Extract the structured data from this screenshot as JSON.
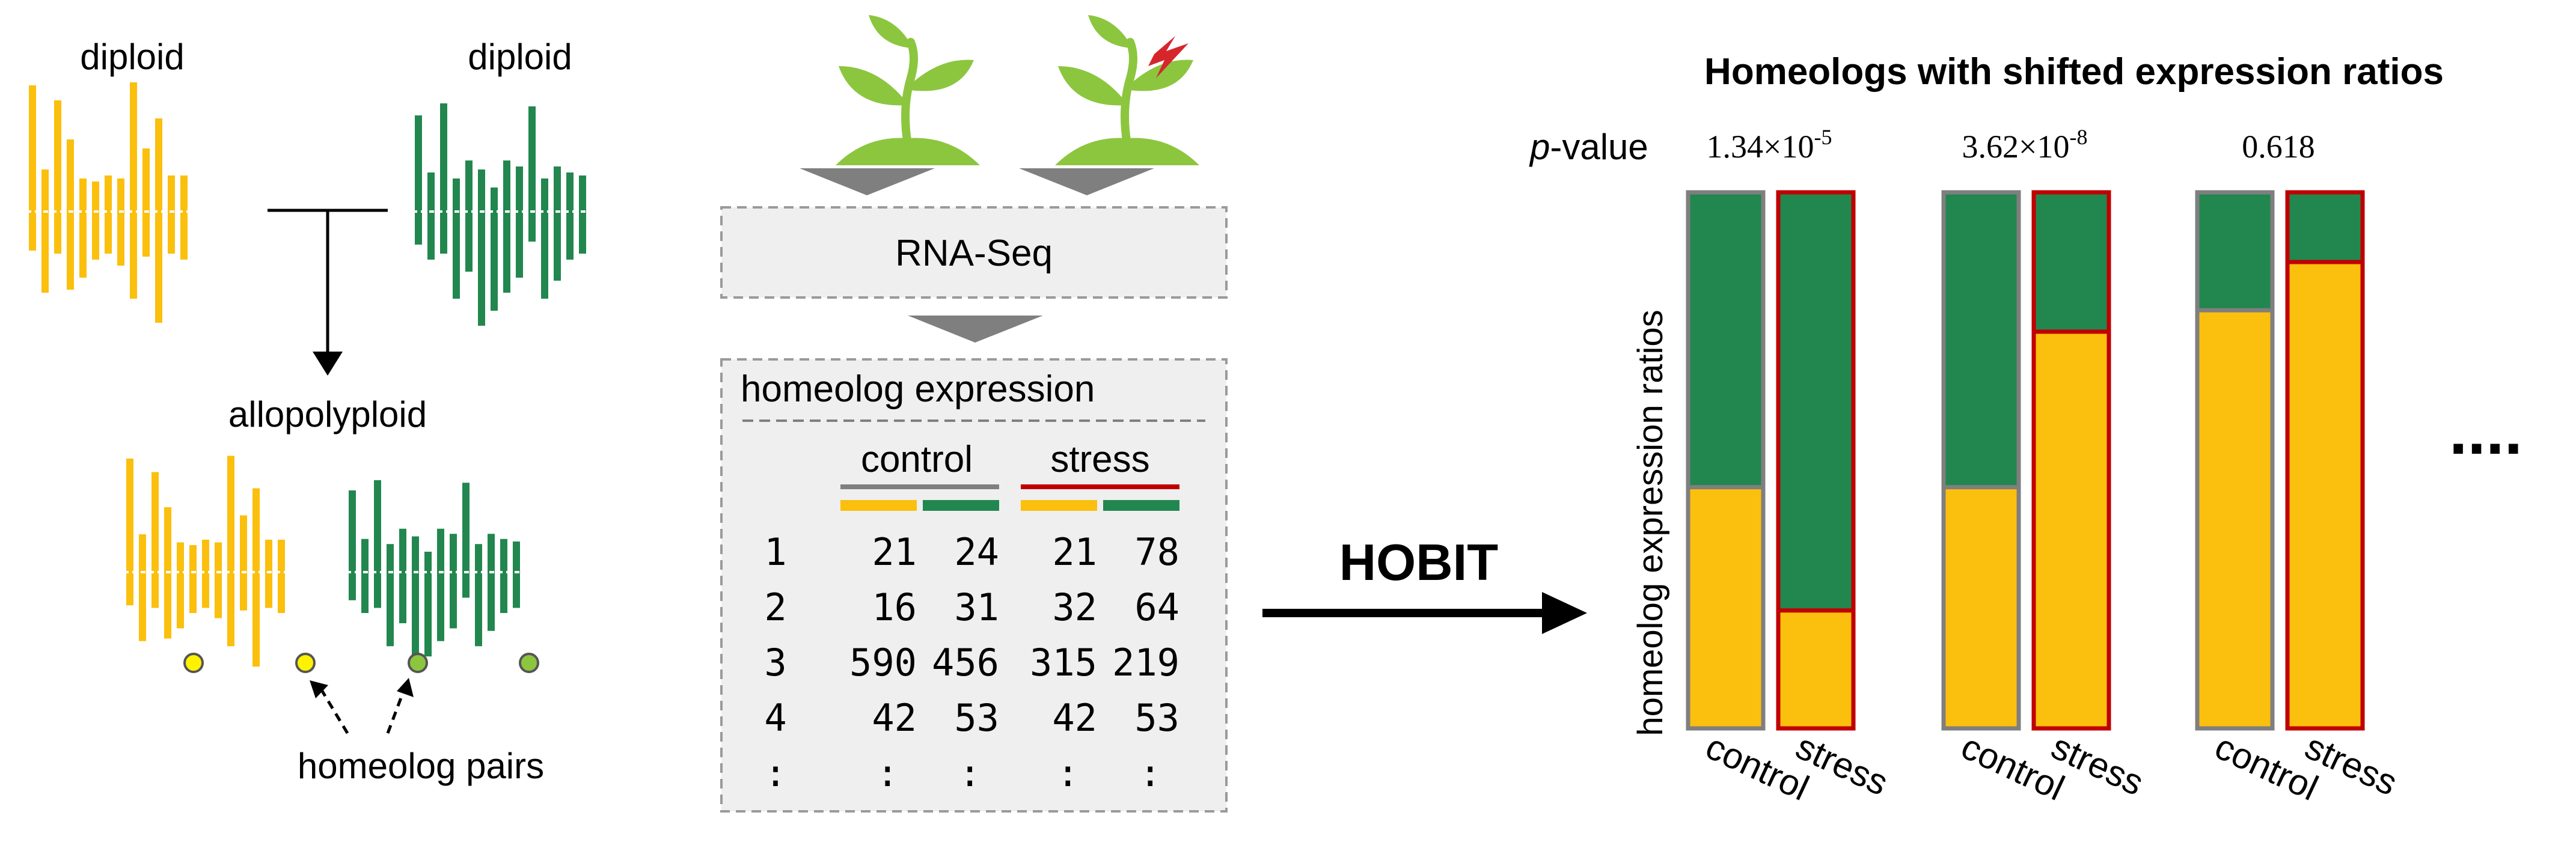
{
  "colors": {
    "yellow": "#fbbf0d",
    "green": "#22874f",
    "gray": "#7f7f7f",
    "red": "#c00000",
    "panel_bg": "#efefef",
    "panel_border": "#9a9a9a",
    "plant_green": "#8cc63e",
    "bolt_red": "#d7262b",
    "plant_dark": "#5a8d2a"
  },
  "left": {
    "diploid_left_label": "diploid",
    "diploid_right_label": "diploid",
    "allopolyploid_label": "allopolyploid",
    "homeolog_pairs_label": "homeolog pairs"
  },
  "middle": {
    "rnaseq_label": "RNA-Seq",
    "expression_title": "homeolog expression",
    "control_label": "control",
    "stress_label": "stress",
    "rows": [
      [
        "1",
        "21",
        "24",
        "21",
        "78"
      ],
      [
        "2",
        "16",
        "31",
        "32",
        "64"
      ],
      [
        "3",
        "590",
        "456",
        "315",
        "219"
      ],
      [
        "4",
        "42",
        "53",
        "42",
        "53"
      ],
      [
        ":",
        ":",
        ":",
        ":",
        ":"
      ]
    ]
  },
  "arrow_label": "HOBIT",
  "chart_title": "Homeologs with shifted expression ratios",
  "pvalue_label_italic": "p",
  "pvalue_label_rest": "-value",
  "ellipsis": "....",
  "chart_data": {
    "type": "bar",
    "stacked": true,
    "title": "Homeologs with shifted expression ratios",
    "ylabel": "homeolog expression ratios",
    "ylim": [
      0,
      1
    ],
    "categories": [
      "control",
      "stress"
    ],
    "groups": [
      {
        "pvalue_mantissa": "1.34×10",
        "pvalue_exp": "-5",
        "bars": [
          {
            "condition": "control",
            "yellow_fraction": 0.45
          },
          {
            "condition": "stress",
            "yellow_fraction": 0.22
          }
        ]
      },
      {
        "pvalue_mantissa": "3.62×10",
        "pvalue_exp": "-8",
        "bars": [
          {
            "condition": "control",
            "yellow_fraction": 0.45
          },
          {
            "condition": "stress",
            "yellow_fraction": 0.74
          }
        ]
      },
      {
        "pvalue_mantissa": "0.618",
        "pvalue_exp": "",
        "bars": [
          {
            "condition": "control",
            "yellow_fraction": 0.78
          },
          {
            "condition": "stress",
            "yellow_fraction": 0.87
          }
        ]
      }
    ]
  }
}
